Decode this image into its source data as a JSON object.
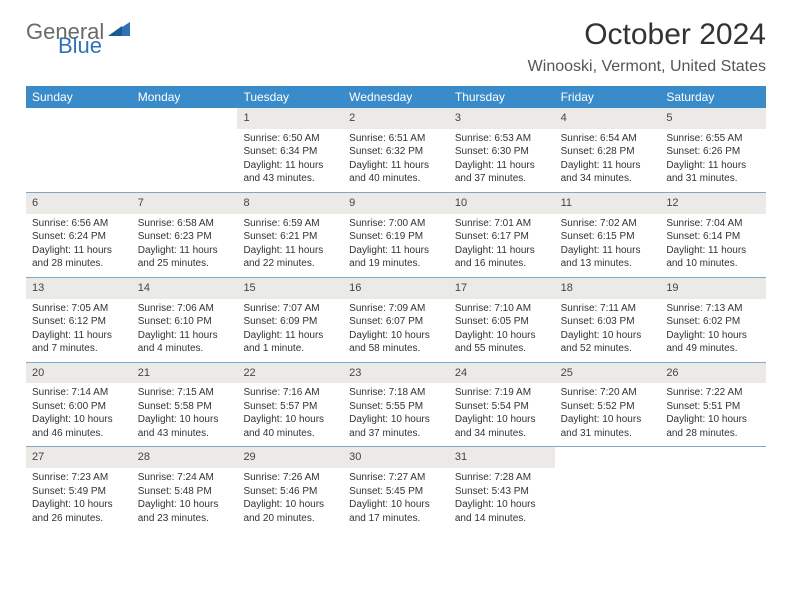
{
  "logo": {
    "text1": "General",
    "text2": "Blue"
  },
  "title": "October 2024",
  "location": "Winooski, Vermont, United States",
  "colors": {
    "header_bg": "#3a8bc9",
    "header_text": "#ffffff",
    "daynum_bg": "#eceae7",
    "week_border": "#7ca8cc",
    "logo_gray": "#6a6a6a",
    "logo_blue": "#2f72b8"
  },
  "dow": [
    "Sunday",
    "Monday",
    "Tuesday",
    "Wednesday",
    "Thursday",
    "Friday",
    "Saturday"
  ],
  "weeks": [
    [
      {
        "n": "",
        "sr": "",
        "ss": "",
        "dl": ""
      },
      {
        "n": "",
        "sr": "",
        "ss": "",
        "dl": ""
      },
      {
        "n": "1",
        "sr": "Sunrise: 6:50 AM",
        "ss": "Sunset: 6:34 PM",
        "dl": "Daylight: 11 hours and 43 minutes."
      },
      {
        "n": "2",
        "sr": "Sunrise: 6:51 AM",
        "ss": "Sunset: 6:32 PM",
        "dl": "Daylight: 11 hours and 40 minutes."
      },
      {
        "n": "3",
        "sr": "Sunrise: 6:53 AM",
        "ss": "Sunset: 6:30 PM",
        "dl": "Daylight: 11 hours and 37 minutes."
      },
      {
        "n": "4",
        "sr": "Sunrise: 6:54 AM",
        "ss": "Sunset: 6:28 PM",
        "dl": "Daylight: 11 hours and 34 minutes."
      },
      {
        "n": "5",
        "sr": "Sunrise: 6:55 AM",
        "ss": "Sunset: 6:26 PM",
        "dl": "Daylight: 11 hours and 31 minutes."
      }
    ],
    [
      {
        "n": "6",
        "sr": "Sunrise: 6:56 AM",
        "ss": "Sunset: 6:24 PM",
        "dl": "Daylight: 11 hours and 28 minutes."
      },
      {
        "n": "7",
        "sr": "Sunrise: 6:58 AM",
        "ss": "Sunset: 6:23 PM",
        "dl": "Daylight: 11 hours and 25 minutes."
      },
      {
        "n": "8",
        "sr": "Sunrise: 6:59 AM",
        "ss": "Sunset: 6:21 PM",
        "dl": "Daylight: 11 hours and 22 minutes."
      },
      {
        "n": "9",
        "sr": "Sunrise: 7:00 AM",
        "ss": "Sunset: 6:19 PM",
        "dl": "Daylight: 11 hours and 19 minutes."
      },
      {
        "n": "10",
        "sr": "Sunrise: 7:01 AM",
        "ss": "Sunset: 6:17 PM",
        "dl": "Daylight: 11 hours and 16 minutes."
      },
      {
        "n": "11",
        "sr": "Sunrise: 7:02 AM",
        "ss": "Sunset: 6:15 PM",
        "dl": "Daylight: 11 hours and 13 minutes."
      },
      {
        "n": "12",
        "sr": "Sunrise: 7:04 AM",
        "ss": "Sunset: 6:14 PM",
        "dl": "Daylight: 11 hours and 10 minutes."
      }
    ],
    [
      {
        "n": "13",
        "sr": "Sunrise: 7:05 AM",
        "ss": "Sunset: 6:12 PM",
        "dl": "Daylight: 11 hours and 7 minutes."
      },
      {
        "n": "14",
        "sr": "Sunrise: 7:06 AM",
        "ss": "Sunset: 6:10 PM",
        "dl": "Daylight: 11 hours and 4 minutes."
      },
      {
        "n": "15",
        "sr": "Sunrise: 7:07 AM",
        "ss": "Sunset: 6:09 PM",
        "dl": "Daylight: 11 hours and 1 minute."
      },
      {
        "n": "16",
        "sr": "Sunrise: 7:09 AM",
        "ss": "Sunset: 6:07 PM",
        "dl": "Daylight: 10 hours and 58 minutes."
      },
      {
        "n": "17",
        "sr": "Sunrise: 7:10 AM",
        "ss": "Sunset: 6:05 PM",
        "dl": "Daylight: 10 hours and 55 minutes."
      },
      {
        "n": "18",
        "sr": "Sunrise: 7:11 AM",
        "ss": "Sunset: 6:03 PM",
        "dl": "Daylight: 10 hours and 52 minutes."
      },
      {
        "n": "19",
        "sr": "Sunrise: 7:13 AM",
        "ss": "Sunset: 6:02 PM",
        "dl": "Daylight: 10 hours and 49 minutes."
      }
    ],
    [
      {
        "n": "20",
        "sr": "Sunrise: 7:14 AM",
        "ss": "Sunset: 6:00 PM",
        "dl": "Daylight: 10 hours and 46 minutes."
      },
      {
        "n": "21",
        "sr": "Sunrise: 7:15 AM",
        "ss": "Sunset: 5:58 PM",
        "dl": "Daylight: 10 hours and 43 minutes."
      },
      {
        "n": "22",
        "sr": "Sunrise: 7:16 AM",
        "ss": "Sunset: 5:57 PM",
        "dl": "Daylight: 10 hours and 40 minutes."
      },
      {
        "n": "23",
        "sr": "Sunrise: 7:18 AM",
        "ss": "Sunset: 5:55 PM",
        "dl": "Daylight: 10 hours and 37 minutes."
      },
      {
        "n": "24",
        "sr": "Sunrise: 7:19 AM",
        "ss": "Sunset: 5:54 PM",
        "dl": "Daylight: 10 hours and 34 minutes."
      },
      {
        "n": "25",
        "sr": "Sunrise: 7:20 AM",
        "ss": "Sunset: 5:52 PM",
        "dl": "Daylight: 10 hours and 31 minutes."
      },
      {
        "n": "26",
        "sr": "Sunrise: 7:22 AM",
        "ss": "Sunset: 5:51 PM",
        "dl": "Daylight: 10 hours and 28 minutes."
      }
    ],
    [
      {
        "n": "27",
        "sr": "Sunrise: 7:23 AM",
        "ss": "Sunset: 5:49 PM",
        "dl": "Daylight: 10 hours and 26 minutes."
      },
      {
        "n": "28",
        "sr": "Sunrise: 7:24 AM",
        "ss": "Sunset: 5:48 PM",
        "dl": "Daylight: 10 hours and 23 minutes."
      },
      {
        "n": "29",
        "sr": "Sunrise: 7:26 AM",
        "ss": "Sunset: 5:46 PM",
        "dl": "Daylight: 10 hours and 20 minutes."
      },
      {
        "n": "30",
        "sr": "Sunrise: 7:27 AM",
        "ss": "Sunset: 5:45 PM",
        "dl": "Daylight: 10 hours and 17 minutes."
      },
      {
        "n": "31",
        "sr": "Sunrise: 7:28 AM",
        "ss": "Sunset: 5:43 PM",
        "dl": "Daylight: 10 hours and 14 minutes."
      },
      {
        "n": "",
        "sr": "",
        "ss": "",
        "dl": ""
      },
      {
        "n": "",
        "sr": "",
        "ss": "",
        "dl": ""
      }
    ]
  ]
}
